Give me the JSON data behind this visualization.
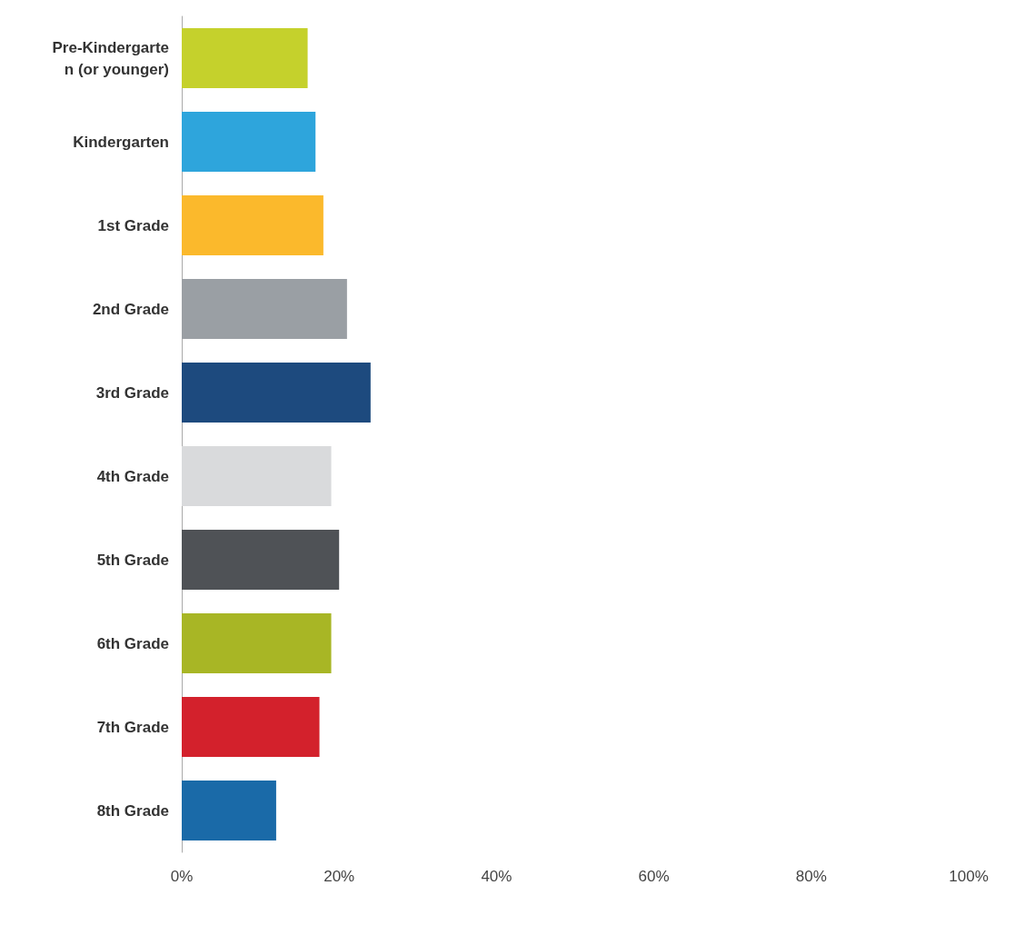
{
  "chart_data": {
    "type": "bar",
    "orientation": "horizontal",
    "categories": [
      "Pre-Kindergarte\nn (or younger)",
      "Kindergarten",
      "1st Grade",
      "2nd Grade",
      "3rd Grade",
      "4th Grade",
      "5th Grade",
      "6th Grade",
      "7th Grade",
      "8th Grade"
    ],
    "values": [
      16,
      17,
      18,
      21,
      24,
      19,
      20,
      19,
      17.5,
      12
    ],
    "colors": [
      "#c5d12c",
      "#2ea5dc",
      "#fbb92c",
      "#9a9fa4",
      "#1d4a7e",
      "#d9dadc",
      "#4f5256",
      "#a8b625",
      "#d3212c",
      "#1a6aa8"
    ],
    "xlim": [
      0,
      100
    ],
    "xticks": [
      {
        "value": 0,
        "label": "0%"
      },
      {
        "value": 20,
        "label": "20%"
      },
      {
        "value": 40,
        "label": "40%"
      },
      {
        "value": 60,
        "label": "60%"
      },
      {
        "value": 80,
        "label": "80%"
      },
      {
        "value": 100,
        "label": "100%"
      }
    ],
    "grid": false
  }
}
